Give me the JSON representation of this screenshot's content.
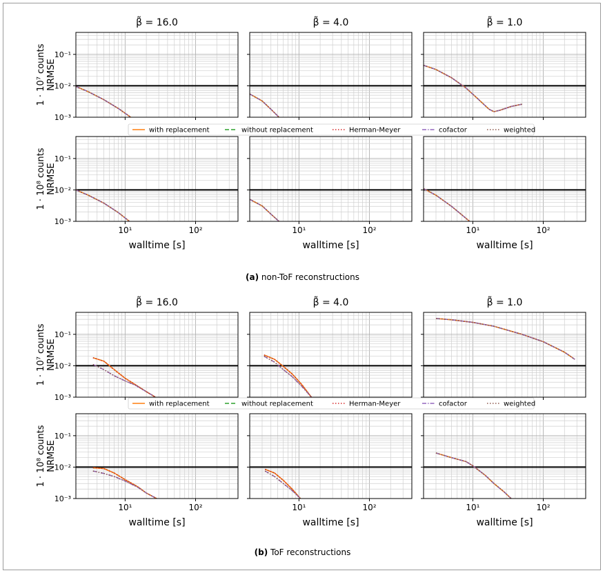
{
  "captions": {
    "a_label": "(a)",
    "a_text": "non-ToF reconstructions",
    "b_label": "(b)",
    "b_text": "ToF reconstructions"
  },
  "legend": {
    "entries": [
      {
        "name": "with replacement",
        "color": "#ff7f0e",
        "dash": "solid"
      },
      {
        "name": "without replacement",
        "color": "#2ca02c",
        "dash": "dashed"
      },
      {
        "name": "Herman-Meyer",
        "color": "#d62728",
        "dash": "dotted"
      },
      {
        "name": "cofactor",
        "color": "#9467bd",
        "dash": "dashdot"
      },
      {
        "name": "weighted",
        "color": "#8c564b",
        "dash": "dotted"
      }
    ]
  },
  "chart_data": {
    "type": "line",
    "x_scale": "log",
    "y_scale": "log",
    "xlim": [
      2,
      400
    ],
    "ylim": [
      0.001,
      0.5
    ],
    "xlabel": "walltime [s]",
    "ylabel_metric": "NRMSE",
    "row_labels": [
      "1 · 10⁷ counts",
      "1 · 10⁸ counts",
      "1 · 10⁷ counts",
      "1 · 10⁸ counts"
    ],
    "column_titles": [
      "β̃ = 16.0",
      "β̃ = 4.0",
      "β̃ = 1.0"
    ],
    "x_ticks": [
      "10¹",
      "10²"
    ],
    "y_ticks": [
      "10⁻³",
      "10⁻²",
      "10⁻¹"
    ],
    "reference_line_y": 0.01,
    "grid": true,
    "panels": [
      {
        "group": "a",
        "row": 0,
        "col": 0,
        "series": [
          {
            "x": [
              2,
              3,
              5,
              8,
              12
            ],
            "y": [
              0.0095,
              0.0065,
              0.0036,
              0.0019,
              0.001
            ]
          }
        ]
      },
      {
        "group": "a",
        "row": 0,
        "col": 1,
        "series": [
          {
            "x": [
              2,
              3,
              4,
              5.2
            ],
            "y": [
              0.0055,
              0.0033,
              0.0018,
              0.001
            ]
          }
        ]
      },
      {
        "group": "a",
        "row": 0,
        "col": 2,
        "series": [
          {
            "x": [
              2,
              3,
              5,
              8,
              12,
              17,
              20,
              25,
              35,
              50
            ],
            "y": [
              0.045,
              0.033,
              0.018,
              0.0085,
              0.0037,
              0.0018,
              0.0015,
              0.0017,
              0.0022,
              0.0026
            ]
          }
        ]
      },
      {
        "group": "a",
        "row": 1,
        "col": 0,
        "series": [
          {
            "x": [
              2,
              3,
              5,
              8,
              11.5
            ],
            "y": [
              0.01,
              0.0068,
              0.0038,
              0.0019,
              0.001
            ]
          }
        ]
      },
      {
        "group": "a",
        "row": 1,
        "col": 1,
        "series": [
          {
            "x": [
              2,
              3,
              4,
              5.2
            ],
            "y": [
              0.005,
              0.0031,
              0.0017,
              0.001
            ]
          }
        ]
      },
      {
        "group": "a",
        "row": 1,
        "col": 2,
        "series": [
          {
            "x": [
              2,
              3,
              5,
              7,
              9
            ],
            "y": [
              0.011,
              0.0068,
              0.003,
              0.0016,
              0.001
            ]
          }
        ]
      },
      {
        "group": "b",
        "row": 0,
        "col": 0,
        "series": [
          {
            "name": "with replacement",
            "x": [
              3.5,
              5,
              7,
              10,
              14,
              20,
              27
            ],
            "y": [
              0.018,
              0.014,
              0.0075,
              0.004,
              0.0025,
              0.0015,
              0.001
            ]
          },
          {
            "name": "cofactor",
            "x": [
              3.5,
              5,
              7,
              10,
              14,
              20,
              27
            ],
            "y": [
              0.011,
              0.0075,
              0.0048,
              0.0033,
              0.0024,
              0.0015,
              0.001
            ]
          }
        ]
      },
      {
        "group": "b",
        "row": 0,
        "col": 1,
        "series": [
          {
            "name": "with replacement",
            "x": [
              3.2,
              4.5,
              6,
              8,
              11,
              15
            ],
            "y": [
              0.022,
              0.016,
              0.0095,
              0.0055,
              0.0025,
              0.001
            ]
          },
          {
            "name": "cofactor",
            "x": [
              3.2,
              4.5,
              6,
              8,
              11,
              15
            ],
            "y": [
              0.02,
              0.013,
              0.0075,
              0.0045,
              0.0022,
              0.001
            ]
          }
        ]
      },
      {
        "group": "b",
        "row": 0,
        "col": 2,
        "series": [
          {
            "x": [
              3,
              5,
              10,
              20,
              50,
              100,
              200,
              280
            ],
            "y": [
              0.32,
              0.29,
              0.24,
              0.18,
              0.1,
              0.058,
              0.027,
              0.016
            ]
          }
        ]
      },
      {
        "group": "b",
        "row": 1,
        "col": 0,
        "series": [
          {
            "name": "with replacement",
            "x": [
              3.5,
              5,
              7,
              10,
              15,
              20,
              28
            ],
            "y": [
              0.0095,
              0.009,
              0.0065,
              0.004,
              0.0024,
              0.0015,
              0.001
            ]
          },
          {
            "name": "cofactor",
            "x": [
              3.5,
              5,
              7,
              10,
              15,
              20,
              28
            ],
            "y": [
              0.0075,
              0.0063,
              0.005,
              0.0036,
              0.0023,
              0.0015,
              0.001
            ]
          }
        ]
      },
      {
        "group": "b",
        "row": 1,
        "col": 1,
        "series": [
          {
            "name": "with replacement",
            "x": [
              3.3,
              4.5,
              6,
              8,
              10.5
            ],
            "y": [
              0.0085,
              0.0065,
              0.0038,
              0.002,
              0.001
            ]
          },
          {
            "name": "cofactor",
            "x": [
              3.3,
              4.5,
              6,
              8,
              10.5
            ],
            "y": [
              0.0075,
              0.005,
              0.003,
              0.0018,
              0.001
            ]
          }
        ]
      },
      {
        "group": "b",
        "row": 1,
        "col": 2,
        "series": [
          {
            "x": [
              3,
              5,
              8,
              10,
              15,
              20,
              28,
              35
            ],
            "y": [
              0.028,
              0.02,
              0.015,
              0.011,
              0.0055,
              0.003,
              0.0016,
              0.001
            ]
          }
        ]
      }
    ]
  }
}
